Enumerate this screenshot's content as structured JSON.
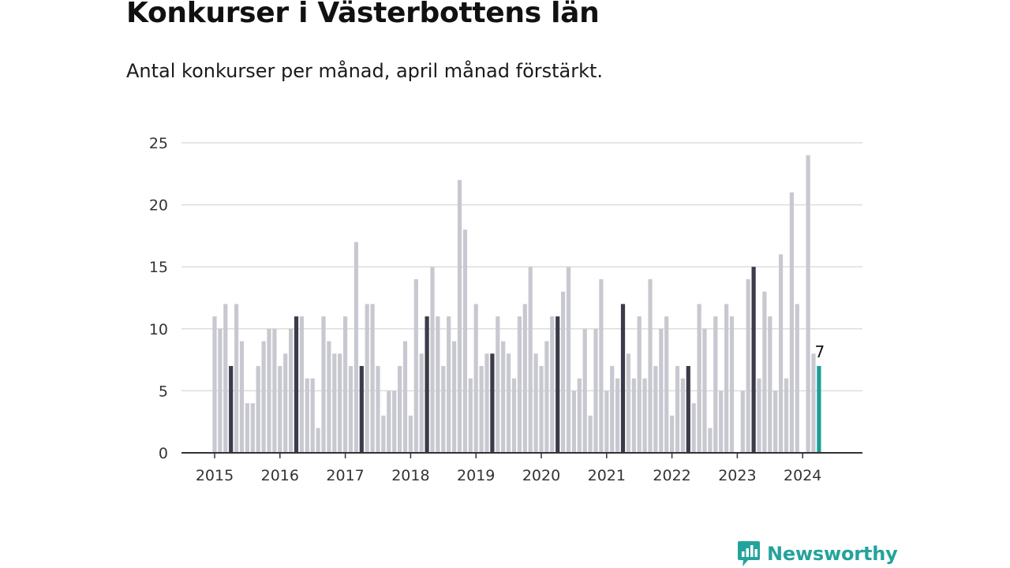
{
  "title": "Konkurser i Västerbottens län",
  "subtitle": "Antal konkurser per månad, april månad förstärkt.",
  "brand": {
    "name": "Newsworthy",
    "icon": "chart-bubble-icon",
    "color": "#24a39b"
  },
  "colors": {
    "default": "#c8c8d0",
    "highlight": "#3b3b4a",
    "latest": "#1a9e96",
    "grid": "#dddddd",
    "axis": "#333333"
  },
  "chart_data": {
    "type": "bar",
    "title": "Konkurser i Västerbottens län",
    "subtitle": "Antal konkurser per månad, april månad förstärkt.",
    "xlabel": "",
    "ylabel": "",
    "ylim": [
      0,
      25
    ],
    "yticks": [
      0,
      5,
      10,
      15,
      20,
      25
    ],
    "xticks": [
      "2015",
      "2016",
      "2017",
      "2018",
      "2019",
      "2020",
      "2021",
      "2022",
      "2023",
      "2024"
    ],
    "grid": true,
    "legend": "none",
    "highlight_month": "april",
    "start": "2015-01",
    "end": "2024-04",
    "categories": [
      "2015-01",
      "2015-02",
      "2015-03",
      "2015-04",
      "2015-05",
      "2015-06",
      "2015-07",
      "2015-08",
      "2015-09",
      "2015-10",
      "2015-11",
      "2015-12",
      "2016-01",
      "2016-02",
      "2016-03",
      "2016-04",
      "2016-05",
      "2016-06",
      "2016-07",
      "2016-08",
      "2016-09",
      "2016-10",
      "2016-11",
      "2016-12",
      "2017-01",
      "2017-02",
      "2017-03",
      "2017-04",
      "2017-05",
      "2017-06",
      "2017-07",
      "2017-08",
      "2017-09",
      "2017-10",
      "2017-11",
      "2017-12",
      "2018-01",
      "2018-02",
      "2018-03",
      "2018-04",
      "2018-05",
      "2018-06",
      "2018-07",
      "2018-08",
      "2018-09",
      "2018-10",
      "2018-11",
      "2018-12",
      "2019-01",
      "2019-02",
      "2019-03",
      "2019-04",
      "2019-05",
      "2019-06",
      "2019-07",
      "2019-08",
      "2019-09",
      "2019-10",
      "2019-11",
      "2019-12",
      "2020-01",
      "2020-02",
      "2020-03",
      "2020-04",
      "2020-05",
      "2020-06",
      "2020-07",
      "2020-08",
      "2020-09",
      "2020-10",
      "2020-11",
      "2020-12",
      "2021-01",
      "2021-02",
      "2021-03",
      "2021-04",
      "2021-05",
      "2021-06",
      "2021-07",
      "2021-08",
      "2021-09",
      "2021-10",
      "2021-11",
      "2021-12",
      "2022-01",
      "2022-02",
      "2022-03",
      "2022-04",
      "2022-05",
      "2022-06",
      "2022-07",
      "2022-08",
      "2022-09",
      "2022-10",
      "2022-11",
      "2022-12",
      "2023-01",
      "2023-02",
      "2023-03",
      "2023-04",
      "2023-05",
      "2023-06",
      "2023-07",
      "2023-08",
      "2023-09",
      "2023-10",
      "2023-11",
      "2023-12",
      "2024-01",
      "2024-02",
      "2024-03",
      "2024-04"
    ],
    "values": [
      11,
      10,
      12,
      7,
      12,
      9,
      4,
      4,
      7,
      9,
      10,
      10,
      7,
      8,
      10,
      11,
      11,
      6,
      6,
      2,
      11,
      9,
      8,
      8,
      11,
      7,
      17,
      7,
      12,
      12,
      7,
      3,
      5,
      5,
      7,
      9,
      3,
      14,
      8,
      11,
      15,
      11,
      7,
      11,
      9,
      22,
      18,
      6,
      12,
      7,
      8,
      8,
      11,
      9,
      8,
      6,
      11,
      12,
      15,
      8,
      7,
      9,
      11,
      11,
      13,
      15,
      5,
      6,
      10,
      3,
      10,
      14,
      5,
      7,
      6,
      12,
      8,
      6,
      11,
      6,
      14,
      7,
      10,
      11,
      3,
      7,
      6,
      7,
      4,
      12,
      10,
      2,
      11,
      5,
      12,
      11,
      0,
      5,
      14,
      15,
      6,
      13,
      11,
      5,
      16,
      6,
      21,
      12,
      0,
      24,
      8,
      7
    ],
    "data_labels": [
      {
        "category": "2024-04",
        "text": "7"
      }
    ]
  }
}
